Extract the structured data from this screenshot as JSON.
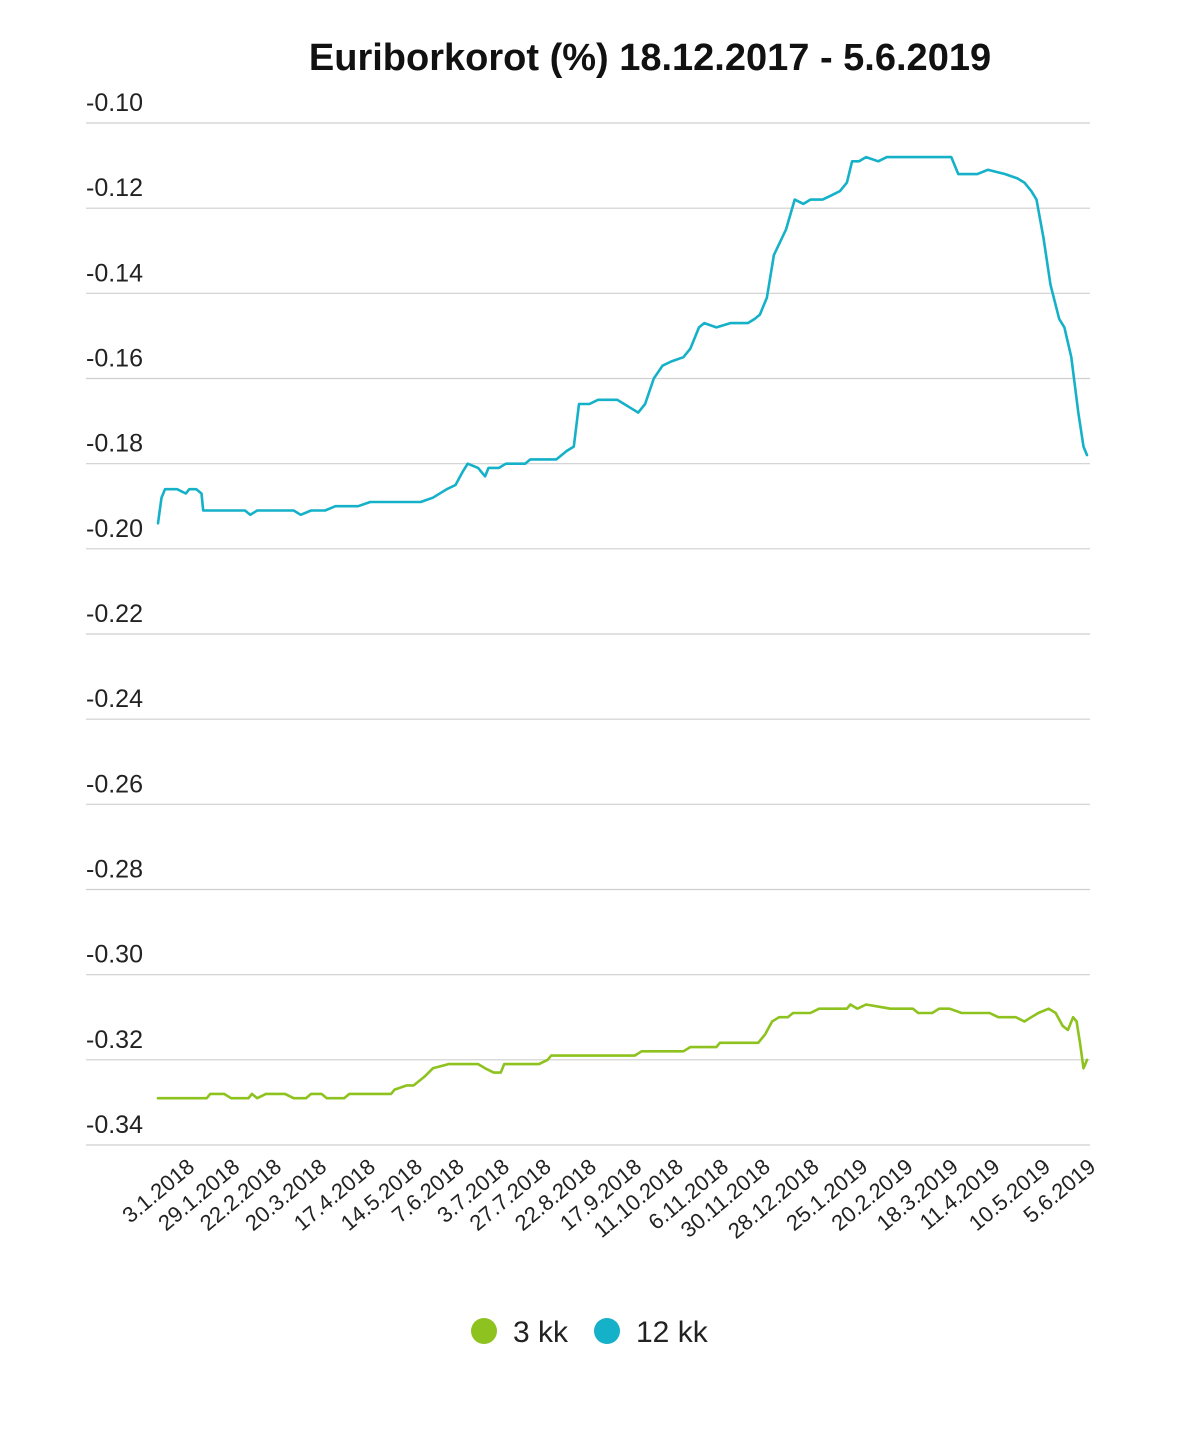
{
  "chart_data": {
    "type": "line",
    "title": "Euriborkorot (%) 18.12.2017 - 5.6.2019",
    "ylim": [
      -0.34,
      -0.1
    ],
    "yticks": [
      -0.1,
      -0.12,
      -0.14,
      -0.16,
      -0.18,
      -0.2,
      -0.22,
      -0.24,
      -0.26,
      -0.28,
      -0.3,
      -0.32,
      -0.34
    ],
    "ytick_labels": [
      "-0.10",
      "-0.12",
      "-0.14",
      "-0.16",
      "-0.18",
      "-0.20",
      "-0.22",
      "-0.24",
      "-0.26",
      "-0.28",
      "-0.30",
      "-0.32",
      "-0.34"
    ],
    "xlim": [
      "2017-12-18",
      "2019-06-05"
    ],
    "xticks": [
      "2018-01-03",
      "2018-01-29",
      "2018-02-22",
      "2018-03-20",
      "2018-04-17",
      "2018-05-14",
      "2018-06-07",
      "2018-07-03",
      "2018-07-27",
      "2018-08-22",
      "2018-09-17",
      "2018-10-11",
      "2018-11-06",
      "2018-11-30",
      "2018-12-28",
      "2019-01-25",
      "2019-02-20",
      "2019-03-18",
      "2019-04-11",
      "2019-05-10",
      "2019-06-05"
    ],
    "xtick_labels": [
      "3.1.2018",
      "29.1.2018",
      "22.2.2018",
      "20.3.2018",
      "17.4.2018",
      "14.5.2018",
      "7.6.2018",
      "3.7.2018",
      "27.7.2018",
      "22.8.2018",
      "17.9.2018",
      "11.10.2018",
      "6.11.2018",
      "30.11.2018",
      "28.12.2018",
      "25.1.2019",
      "20.2.2019",
      "18.3.2019",
      "11.4.2019",
      "10.5.2019",
      "5.6.2019"
    ],
    "grid": true,
    "legend_position": "bottom-center",
    "series": [
      {
        "name": "3 kk",
        "color": "#8dc21f",
        "points": [
          [
            "2017-12-18",
            -0.329
          ],
          [
            "2018-01-15",
            -0.329
          ],
          [
            "2018-01-17",
            -0.328
          ],
          [
            "2018-01-25",
            -0.328
          ],
          [
            "2018-01-29",
            -0.329
          ],
          [
            "2018-02-08",
            -0.329
          ],
          [
            "2018-02-10",
            -0.328
          ],
          [
            "2018-02-13",
            -0.329
          ],
          [
            "2018-02-18",
            -0.328
          ],
          [
            "2018-03-01",
            -0.328
          ],
          [
            "2018-03-06",
            -0.329
          ],
          [
            "2018-03-13",
            -0.329
          ],
          [
            "2018-03-16",
            -0.328
          ],
          [
            "2018-03-22",
            -0.328
          ],
          [
            "2018-03-25",
            -0.329
          ],
          [
            "2018-04-04",
            -0.329
          ],
          [
            "2018-04-07",
            -0.328
          ],
          [
            "2018-04-13",
            -0.328
          ],
          [
            "2018-05-01",
            -0.328
          ],
          [
            "2018-05-03",
            -0.327
          ],
          [
            "2018-05-10",
            -0.326
          ],
          [
            "2018-05-14",
            -0.326
          ],
          [
            "2018-05-20",
            -0.324
          ],
          [
            "2018-05-25",
            -0.322
          ],
          [
            "2018-06-03",
            -0.321
          ],
          [
            "2018-06-20",
            -0.321
          ],
          [
            "2018-06-24",
            -0.322
          ],
          [
            "2018-06-29",
            -0.323
          ],
          [
            "2018-07-03",
            -0.323
          ],
          [
            "2018-07-05",
            -0.321
          ],
          [
            "2018-07-25",
            -0.321
          ],
          [
            "2018-07-30",
            -0.32
          ],
          [
            "2018-08-01",
            -0.319
          ],
          [
            "2018-09-18",
            -0.319
          ],
          [
            "2018-09-22",
            -0.318
          ],
          [
            "2018-10-16",
            -0.318
          ],
          [
            "2018-10-20",
            -0.317
          ],
          [
            "2018-11-04",
            -0.317
          ],
          [
            "2018-11-06",
            -0.316
          ],
          [
            "2018-11-28",
            -0.316
          ],
          [
            "2018-12-02",
            -0.314
          ],
          [
            "2018-12-06",
            -0.311
          ],
          [
            "2018-12-10",
            -0.31
          ],
          [
            "2018-12-15",
            -0.31
          ],
          [
            "2018-12-18",
            -0.309
          ],
          [
            "2018-12-28",
            -0.309
          ],
          [
            "2019-01-02",
            -0.308
          ],
          [
            "2019-01-18",
            -0.308
          ],
          [
            "2019-01-20",
            -0.307
          ],
          [
            "2019-01-24",
            -0.308
          ],
          [
            "2019-01-29",
            -0.307
          ],
          [
            "2019-02-12",
            -0.308
          ],
          [
            "2019-02-25",
            -0.308
          ],
          [
            "2019-02-28",
            -0.309
          ],
          [
            "2019-03-08",
            -0.309
          ],
          [
            "2019-03-12",
            -0.308
          ],
          [
            "2019-03-18",
            -0.308
          ],
          [
            "2019-03-25",
            -0.309
          ],
          [
            "2019-04-10",
            -0.309
          ],
          [
            "2019-04-15",
            -0.31
          ],
          [
            "2019-04-25",
            -0.31
          ],
          [
            "2019-04-30",
            -0.311
          ],
          [
            "2019-05-04",
            -0.31
          ],
          [
            "2019-05-08",
            -0.309
          ],
          [
            "2019-05-14",
            -0.308
          ],
          [
            "2019-05-18",
            -0.309
          ],
          [
            "2019-05-22",
            -0.312
          ],
          [
            "2019-05-25",
            -0.313
          ],
          [
            "2019-05-28",
            -0.31
          ],
          [
            "2019-05-30",
            -0.311
          ],
          [
            "2019-06-01",
            -0.316
          ],
          [
            "2019-06-03",
            -0.322
          ],
          [
            "2019-06-04",
            -0.321
          ],
          [
            "2019-06-05",
            -0.32
          ]
        ]
      },
      {
        "name": "12 kk",
        "color": "#14b1c8",
        "points": [
          [
            "2017-12-18",
            -0.194
          ],
          [
            "2017-12-20",
            -0.188
          ],
          [
            "2017-12-22",
            -0.186
          ],
          [
            "2017-12-29",
            -0.186
          ],
          [
            "2018-01-03",
            -0.187
          ],
          [
            "2018-01-05",
            -0.186
          ],
          [
            "2018-01-09",
            -0.186
          ],
          [
            "2018-01-12",
            -0.187
          ],
          [
            "2018-01-13",
            -0.191
          ],
          [
            "2018-01-19",
            -0.191
          ],
          [
            "2018-01-23",
            -0.191
          ],
          [
            "2018-02-06",
            -0.191
          ],
          [
            "2018-02-09",
            -0.192
          ],
          [
            "2018-02-13",
            -0.191
          ],
          [
            "2018-03-06",
            -0.191
          ],
          [
            "2018-03-10",
            -0.192
          ],
          [
            "2018-03-16",
            -0.191
          ],
          [
            "2018-03-24",
            -0.191
          ],
          [
            "2018-03-30",
            -0.19
          ],
          [
            "2018-04-12",
            -0.19
          ],
          [
            "2018-04-19",
            -0.189
          ],
          [
            "2018-04-28",
            -0.189
          ],
          [
            "2018-05-18",
            -0.189
          ],
          [
            "2018-05-25",
            -0.188
          ],
          [
            "2018-06-02",
            -0.186
          ],
          [
            "2018-06-07",
            -0.185
          ],
          [
            "2018-06-11",
            -0.182
          ],
          [
            "2018-06-14",
            -0.18
          ],
          [
            "2018-06-20",
            -0.181
          ],
          [
            "2018-06-24",
            -0.183
          ],
          [
            "2018-06-26",
            -0.181
          ],
          [
            "2018-07-02",
            -0.181
          ],
          [
            "2018-07-06",
            -0.18
          ],
          [
            "2018-07-17",
            -0.18
          ],
          [
            "2018-07-20",
            -0.179
          ],
          [
            "2018-08-04",
            -0.179
          ],
          [
            "2018-08-10",
            -0.177
          ],
          [
            "2018-08-14",
            -0.176
          ],
          [
            "2018-08-17",
            -0.166
          ],
          [
            "2018-08-23",
            -0.166
          ],
          [
            "2018-08-28",
            -0.165
          ],
          [
            "2018-09-08",
            -0.165
          ],
          [
            "2018-09-12",
            -0.166
          ],
          [
            "2018-09-16",
            -0.167
          ],
          [
            "2018-09-20",
            -0.168
          ],
          [
            "2018-09-24",
            -0.166
          ],
          [
            "2018-09-29",
            -0.16
          ],
          [
            "2018-10-04",
            -0.157
          ],
          [
            "2018-10-09",
            -0.156
          ],
          [
            "2018-10-16",
            -0.155
          ],
          [
            "2018-10-20",
            -0.153
          ],
          [
            "2018-10-25",
            -0.148
          ],
          [
            "2018-10-28",
            -0.147
          ],
          [
            "2018-11-04",
            -0.148
          ],
          [
            "2018-11-12",
            -0.147
          ],
          [
            "2018-11-22",
            -0.147
          ],
          [
            "2018-11-26",
            -0.146
          ],
          [
            "2018-11-29",
            -0.145
          ],
          [
            "2018-12-03",
            -0.141
          ],
          [
            "2018-12-07",
            -0.131
          ],
          [
            "2018-12-14",
            -0.125
          ],
          [
            "2018-12-19",
            -0.118
          ],
          [
            "2018-12-24",
            -0.119
          ],
          [
            "2018-12-28",
            -0.118
          ],
          [
            "2019-01-04",
            -0.118
          ],
          [
            "2019-01-09",
            -0.117
          ],
          [
            "2019-01-14",
            -0.116
          ],
          [
            "2019-01-18",
            -0.114
          ],
          [
            "2019-01-21",
            -0.109
          ],
          [
            "2019-01-25",
            -0.109
          ],
          [
            "2019-01-29",
            -0.108
          ],
          [
            "2019-02-05",
            -0.109
          ],
          [
            "2019-02-10",
            -0.108
          ],
          [
            "2019-02-20",
            -0.108
          ],
          [
            "2019-03-10",
            -0.108
          ],
          [
            "2019-03-19",
            -0.108
          ],
          [
            "2019-03-23",
            -0.112
          ],
          [
            "2019-04-03",
            -0.112
          ],
          [
            "2019-04-09",
            -0.111
          ],
          [
            "2019-04-19",
            -0.112
          ],
          [
            "2019-04-26",
            -0.113
          ],
          [
            "2019-04-30",
            -0.114
          ],
          [
            "2019-05-04",
            -0.116
          ],
          [
            "2019-05-07",
            -0.118
          ],
          [
            "2019-05-11",
            -0.127
          ],
          [
            "2019-05-15",
            -0.138
          ],
          [
            "2019-05-20",
            -0.146
          ],
          [
            "2019-05-23",
            -0.148
          ],
          [
            "2019-05-27",
            -0.155
          ],
          [
            "2019-05-31",
            -0.168
          ],
          [
            "2019-06-03",
            -0.176
          ],
          [
            "2019-06-05",
            -0.178
          ]
        ]
      }
    ]
  }
}
